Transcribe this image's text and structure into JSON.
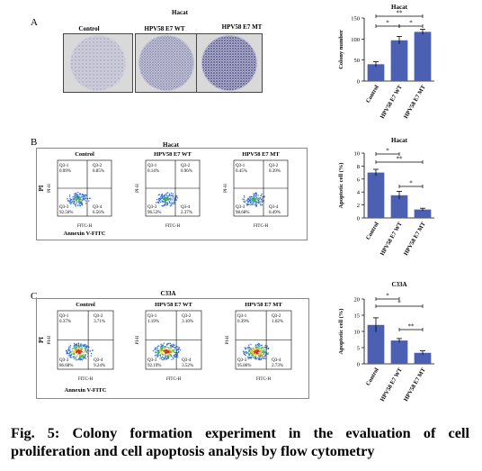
{
  "panels": {
    "A": {
      "letter": "A",
      "group_title": "Hacat",
      "dish_labels": [
        "Control",
        "HPV58 E7 WT",
        "HPV58 E7 MT"
      ]
    },
    "B": {
      "letter": "B",
      "group_title": "Hacat",
      "flow_labels": [
        "Control",
        "HPV58 E7 WT",
        "HPV58 E7 MT"
      ],
      "axis_x": "Annexin V-FITC",
      "axis_y": "PI",
      "tick_x": "FITC-H",
      "tick_y": "PI-H",
      "quadrants": [
        {
          "q1": "Q3-1",
          "v1": "0.09%",
          "q2": "Q3-2",
          "v2": "0.85%",
          "q3": "Q3-3",
          "v3": "92.50%",
          "q4": "Q3-4",
          "v4": "6.56%"
        },
        {
          "q1": "Q3-1",
          "v1": "0.14%",
          "q2": "Q3-2",
          "v2": "0.96%",
          "q3": "Q3-3",
          "v3": "96.53%",
          "q4": "Q3-4",
          "v4": "2.37%"
        },
        {
          "q1": "Q3-1",
          "v1": "0.45%",
          "q2": "Q3-2",
          "v2": "0.39%",
          "q3": "Q3-3",
          "v3": "98.68%",
          "q4": "Q3-4",
          "v4": "0.49%"
        }
      ]
    },
    "C": {
      "letter": "C",
      "group_title": "C33A",
      "flow_labels": [
        "Control",
        "HPV58 E7 WT",
        "HPV58 E7 MT"
      ],
      "axis_x": "Annexin V-FITC",
      "axis_y": "PI",
      "tick_x": "FITC-H",
      "tick_y": "PI-H",
      "quadrants": [
        {
          "q1": "Q3-1",
          "v1": "0.37%",
          "q2": "Q3-2",
          "v2": "3.71%",
          "q3": "Q3-3",
          "v3": "86.68%",
          "q4": "Q3-4",
          "v4": "9.24%"
        },
        {
          "q1": "Q3-1",
          "v1": "1.19%",
          "q2": "Q3-2",
          "v2": "3.10%",
          "q3": "Q3-3",
          "v3": "92.19%",
          "q4": "Q3-4",
          "v4": "3.52%"
        },
        {
          "q1": "Q3-1",
          "v1": "0.39%",
          "q2": "Q3-2",
          "v2": "1.02%",
          "q3": "Q3-3",
          "v3": "95.86%",
          "q4": "Q3-4",
          "v4": "2.73%"
        }
      ]
    }
  },
  "chart_data": [
    {
      "type": "bar",
      "title": "Hacat",
      "ylabel": "Colony number",
      "xlabel": "",
      "categories": [
        "Control",
        "HPV58 E7 WT",
        "HPV58 E7 MT"
      ],
      "values": [
        40,
        97,
        117
      ],
      "errors": [
        6,
        9,
        6
      ],
      "ylim": [
        0,
        150
      ],
      "yticks": [
        0,
        50,
        100,
        150
      ],
      "significance": [
        "*",
        "*",
        "**"
      ],
      "bar_color": "#4b5fb3"
    },
    {
      "type": "bar",
      "title": "Hacat",
      "ylabel": "Apoptotic cell (%)",
      "xlabel": "",
      "categories": [
        "Control",
        "HPV58 E7 WT",
        "HPV58 E7 MT"
      ],
      "values": [
        7.0,
        3.5,
        1.3
      ],
      "errors": [
        0.5,
        0.6,
        0.2
      ],
      "ylim": [
        0,
        10
      ],
      "yticks": [
        0,
        2,
        4,
        6,
        8,
        10
      ],
      "significance": [
        "*",
        "**",
        "*"
      ],
      "bar_color": "#4b5fb3"
    },
    {
      "type": "bar",
      "title": "C33A",
      "ylabel": "Apoptotic cell (%)",
      "xlabel": "",
      "categories": [
        "Control",
        "HPV58 E7 WT",
        "HPV58 E7 MT"
      ],
      "values": [
        12,
        7.2,
        3.4
      ],
      "errors": [
        2.2,
        0.6,
        0.6
      ],
      "ylim": [
        0,
        20
      ],
      "yticks": [
        0,
        5,
        10,
        15,
        20
      ],
      "significance": [
        "*",
        "*",
        "**"
      ],
      "bar_color": "#4b5fb3"
    }
  ],
  "caption": "Fig. 5: Colony formation experiment in the evaluation of cell proliferation and cell apoptosis analysis by flow cytometry"
}
